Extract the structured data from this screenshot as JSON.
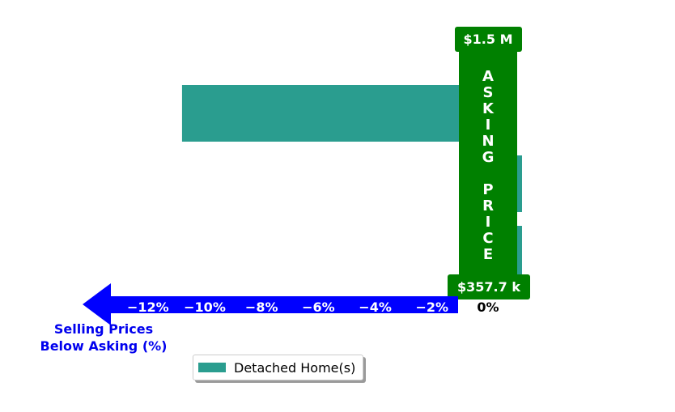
{
  "chart_data": {
    "type": "bar",
    "orientation": "horizontal",
    "series": [
      {
        "name": "Detached Home(s)",
        "color": "#2a9d8f",
        "values": [
          -10.8,
          0.1,
          0.1
        ]
      }
    ],
    "xlabel": "Selling Prices\nBelow Asking (%)",
    "xlim": [
      -12.6,
      0.7
    ],
    "xticks": [
      {
        "value": -12,
        "label": "−12%"
      },
      {
        "value": -10,
        "label": "−10%"
      },
      {
        "value": -8,
        "label": "−8%"
      },
      {
        "value": -6,
        "label": "−6%"
      },
      {
        "value": -4,
        "label": "−4%"
      },
      {
        "value": -2,
        "label": "−2%"
      },
      {
        "value": 0,
        "label": "0%"
      }
    ],
    "asking_price_label": "ASKING PRICE",
    "price_top_label": "$1.5 M",
    "price_bottom_label": "$357.7 k",
    "legend": {
      "position": "bottom-center",
      "entries": [
        "Detached Home(s)"
      ]
    },
    "colors": {
      "bar": "#2a9d8f",
      "asking": "#008000",
      "arrow": "#0000ff",
      "caption": "#0000ee"
    }
  }
}
